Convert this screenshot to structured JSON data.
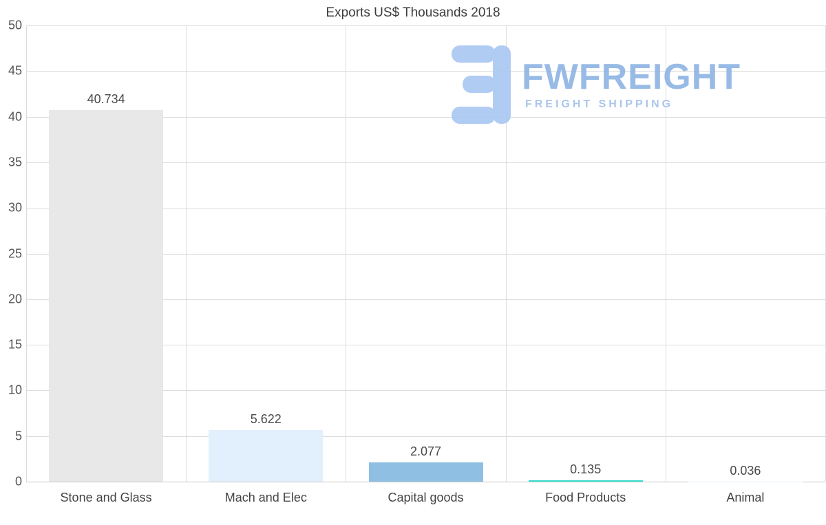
{
  "title": "Exports US$ Thousands 2018",
  "watermark": {
    "brand": "FWFREIGHT",
    "tagline": "FREIGHT SHIPPING",
    "icon_color": "#a9c7f1"
  },
  "chart_data": {
    "type": "bar",
    "title": "Exports US$ Thousands 2018",
    "categories": [
      "Stone and Glass",
      "Mach and Elec",
      "Capital goods",
      "Food Products",
      "Animal"
    ],
    "values": [
      40.734,
      5.622,
      2.077,
      0.135,
      0.036
    ],
    "value_labels": [
      "40.734",
      "5.622",
      "2.077",
      "0.135",
      "0.036"
    ],
    "bar_colors": [
      "#e8e8e8",
      "#e2effc",
      "#8fc0e4",
      "#3adfcd",
      "#e2effc"
    ],
    "xlabel": "",
    "ylabel": "",
    "ylim": [
      0,
      50
    ],
    "y_ticks": [
      0,
      5,
      10,
      15,
      20,
      25,
      30,
      35,
      40,
      45,
      50
    ],
    "grid": true,
    "legend": false,
    "gridline_color": "#dcdcdc"
  }
}
